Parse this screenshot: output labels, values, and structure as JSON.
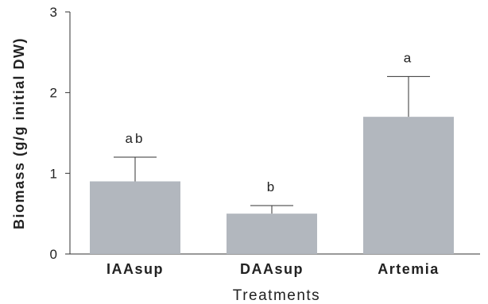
{
  "chart_data": {
    "type": "bar",
    "title": "",
    "xlabel": "Treatments",
    "ylabel": "Biomass (g/g initial DW)",
    "categories": [
      "IAAsup",
      "DAAsup",
      "Artemia"
    ],
    "values": [
      0.9,
      0.5,
      1.7
    ],
    "errors": [
      0.3,
      0.1,
      0.5
    ],
    "significance": [
      "ab",
      "b",
      "a"
    ],
    "ylim": [
      0,
      3
    ],
    "yticks": [
      0,
      1,
      2,
      3
    ],
    "grid": false,
    "bar_color": "#b2b7be",
    "axis_color": "#333333"
  }
}
